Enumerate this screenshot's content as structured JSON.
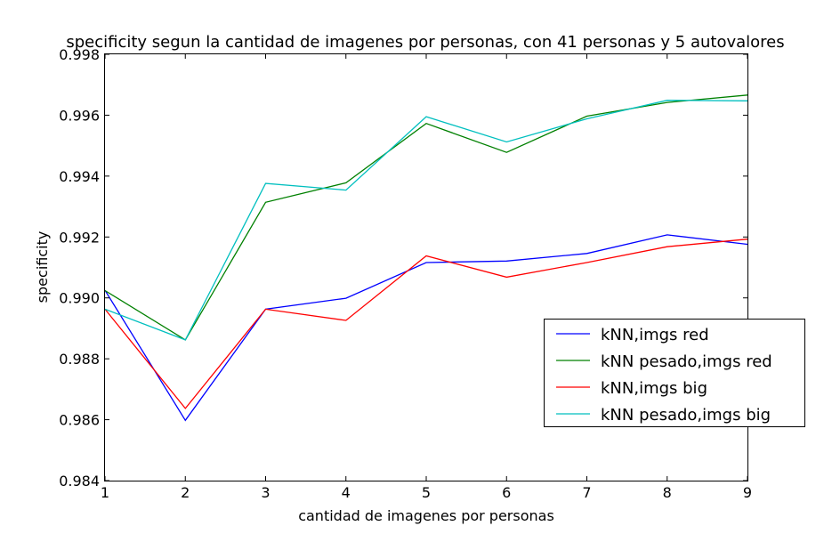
{
  "chart_data": {
    "type": "line",
    "title": "specificity segun la cantidad de imagenes por personas, con 41 personas y 5 autovalores",
    "xlabel": "cantidad de imagenes por personas",
    "ylabel": "specificity",
    "xlim": [
      1,
      9
    ],
    "ylim": [
      0.984,
      0.998
    ],
    "x": [
      1,
      2,
      3,
      4,
      5,
      6,
      7,
      8,
      9
    ],
    "xticks": [
      "1",
      "2",
      "3",
      "4",
      "5",
      "6",
      "7",
      "8",
      "9"
    ],
    "yticks": [
      {
        "value": 0.984,
        "label": "0.984"
      },
      {
        "value": 0.986,
        "label": "0.986"
      },
      {
        "value": 0.988,
        "label": "0.988"
      },
      {
        "value": 0.99,
        "label": "0.990"
      },
      {
        "value": 0.992,
        "label": "0.992"
      },
      {
        "value": 0.994,
        "label": "0.994"
      },
      {
        "value": 0.996,
        "label": "0.996"
      },
      {
        "value": 0.998,
        "label": "0.998"
      }
    ],
    "grid": false,
    "legend_position": "center-right",
    "series": [
      {
        "name": "kNN,imgs red",
        "color": "#0000ff",
        "values": [
          0.99025,
          0.98598,
          0.98963,
          0.98999,
          0.99116,
          0.99121,
          0.99146,
          0.99207,
          0.99176
        ]
      },
      {
        "name": "kNN pesado,imgs red",
        "color": "#008000",
        "values": [
          0.99024,
          0.98862,
          0.99314,
          0.99378,
          0.99573,
          0.99478,
          0.99597,
          0.99642,
          0.99666
        ]
      },
      {
        "name": "kNN,imgs big",
        "color": "#ff0000",
        "values": [
          0.98963,
          0.98637,
          0.98963,
          0.98926,
          0.99138,
          0.99068,
          0.99116,
          0.99168,
          0.99193
        ]
      },
      {
        "name": "kNN pesado,imgs big",
        "color": "#00bfbf",
        "values": [
          0.98963,
          0.98862,
          0.99376,
          0.99354,
          0.99595,
          0.99512,
          0.99588,
          0.99649,
          0.99647
        ]
      }
    ]
  }
}
